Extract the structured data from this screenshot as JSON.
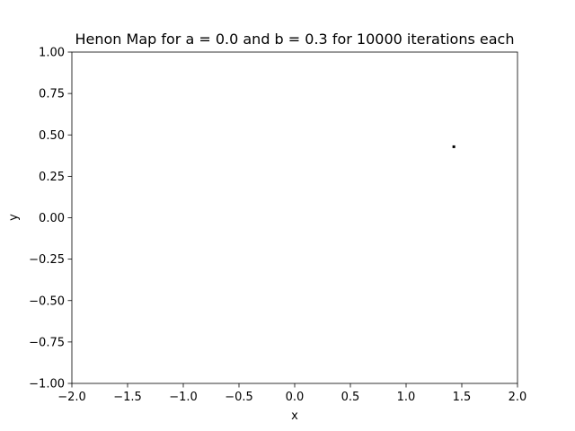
{
  "chart_data": {
    "type": "scatter",
    "title": "Henon Map for a = 0.0 and b = 0.3 for 10000 iterations each",
    "xlabel": "x",
    "ylabel": "y",
    "xlim": [
      -2.0,
      2.0
    ],
    "ylim": [
      -1.0,
      1.0
    ],
    "xticks": [
      -2.0,
      -1.5,
      -1.0,
      -0.5,
      0.0,
      0.5,
      1.0,
      1.5,
      2.0
    ],
    "xtick_labels": [
      "−2.0",
      "−1.5",
      "−1.0",
      "−0.5",
      "0.0",
      "0.5",
      "1.0",
      "1.5",
      "2.0"
    ],
    "yticks": [
      1.0,
      0.75,
      0.5,
      0.25,
      0.0,
      -0.25,
      -0.5,
      -0.75,
      -1.0
    ],
    "ytick_labels": [
      "1.00",
      "0.75",
      "0.50",
      "0.25",
      "0.00",
      "−0.25",
      "−0.50",
      "−0.75",
      "−1.00"
    ],
    "grid": false,
    "series": [
      {
        "x": [
          1.4286
        ],
        "y": [
          0.4286
        ],
        "color": "#000000"
      }
    ]
  }
}
